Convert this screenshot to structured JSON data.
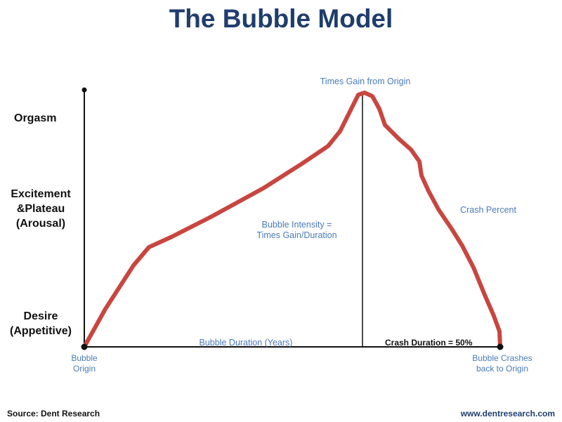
{
  "title": "The Bubble Model",
  "y_labels": {
    "orgasm": "Orgasm",
    "excitement_line1": "Excitement",
    "excitement_line2": "&Plateau",
    "excitement_line3": "(Arousal)",
    "desire_line1": "Desire",
    "desire_line2": "(Appetitive)"
  },
  "annotations": {
    "peak": "Times Gain from Origin",
    "intensity_line1": "Bubble Intensity =",
    "intensity_line2": "Times Gain/Duration",
    "crash_percent": "Crash Percent",
    "bubble_duration": "Bubble Duration (Years)",
    "crash_duration": "Crash Duration = 50%",
    "origin_line1": "Bubble",
    "origin_line2": "Origin",
    "crash_end_line1": "Bubble Crashes",
    "crash_end_line2": "back to Origin"
  },
  "footer": {
    "source": "Source: Dent Research",
    "website": "www.dentresearch.com"
  },
  "colors": {
    "title": "#1f3d6d",
    "curve": "#c8463f",
    "annotation": "#4a7bb7",
    "axis": "#111111"
  }
}
